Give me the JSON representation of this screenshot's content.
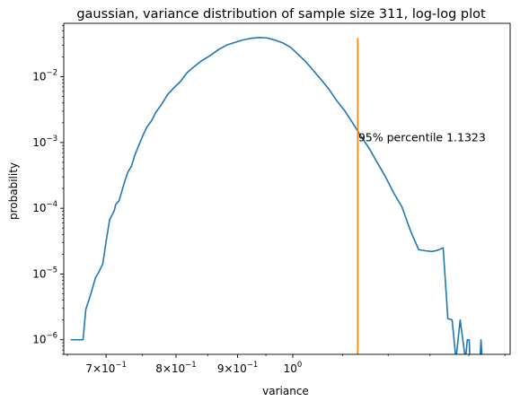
{
  "chart_data": {
    "type": "line",
    "title": "gaussian, variance distribution of sample size 311, log-log plot",
    "xlabel": "variance",
    "ylabel": "probability",
    "xscale": "log",
    "yscale": "log",
    "xlim": [
      0.6456,
      1.515
    ],
    "ylim": [
      6e-07,
      0.065
    ],
    "grid": false,
    "x_ticks": [
      {
        "value": 0.7,
        "base": "7",
        "exp": "−1"
      },
      {
        "value": 0.8,
        "base": "8",
        "exp": "−1"
      },
      {
        "value": 0.9,
        "base": "9",
        "exp": "−1"
      },
      {
        "value": 1.0,
        "base": "10",
        "exp": "0",
        "plain": true
      }
    ],
    "y_ticks": [
      {
        "value": 1e-06,
        "exp": "−6"
      },
      {
        "value": 1e-05,
        "exp": "−5"
      },
      {
        "value": 0.0001,
        "exp": "−4"
      },
      {
        "value": 0.001,
        "exp": "−3"
      },
      {
        "value": 0.01,
        "exp": "−2"
      }
    ],
    "series": [
      {
        "color": "#1f77b4",
        "x": [
          0.6542,
          0.6698,
          0.6734,
          0.679,
          0.686,
          0.6905,
          0.6956,
          0.7005,
          0.7048,
          0.708,
          0.711,
          0.713,
          0.7175,
          0.726,
          0.73,
          0.7345,
          0.739,
          0.745,
          0.752,
          0.757,
          0.763,
          0.77,
          0.779,
          0.7875,
          0.797,
          0.807,
          0.817,
          0.828,
          0.84,
          0.854,
          0.868,
          0.882,
          0.896,
          0.91,
          0.924,
          0.938,
          0.952,
          0.967,
          0.982,
          0.996,
          1.01,
          1.025,
          1.04,
          1.056,
          1.072,
          1.088,
          1.105,
          1.121,
          1.138,
          1.156,
          1.175,
          1.194,
          1.213,
          1.232,
          1.252,
          1.272,
          1.29,
          1.305,
          1.319,
          1.333,
          1.345,
          1.356,
          1.366,
          1.377,
          1.384,
          1.391,
          1.396,
          1.401,
          1.403,
          1.406,
          1.409,
          1.412,
          1.418,
          1.425,
          1.43,
          1.433,
          1.436
        ],
        "y": [
          1e-06,
          1e-06,
          2.9e-06,
          4.6e-06,
          8.8e-06,
          1.08e-05,
          1.43e-05,
          3.4e-05,
          6.7e-05,
          7.9e-05,
          9.2e-05,
          0.000114,
          0.00013,
          0.00027,
          0.00036,
          0.00043,
          0.00062,
          0.0009,
          0.00135,
          0.00174,
          0.0021,
          0.0029,
          0.0039,
          0.0054,
          0.0068,
          0.0085,
          0.0115,
          0.0142,
          0.0175,
          0.021,
          0.026,
          0.0305,
          0.0335,
          0.0365,
          0.0385,
          0.0395,
          0.039,
          0.036,
          0.0325,
          0.028,
          0.022,
          0.017,
          0.0125,
          0.009,
          0.0064,
          0.0043,
          0.003,
          0.002,
          0.00128,
          0.00084,
          0.0005,
          0.0003,
          0.00017,
          0.000105,
          4.6e-05,
          2.35e-05,
          2.25e-05,
          2.2e-05,
          2.3e-05,
          2.5e-05,
          2.1e-06,
          2e-06,
          5e-07,
          2e-06,
          1e-06,
          5e-07,
          1e-06,
          1e-06,
          5e-07,
          5e-07,
          5e-07,
          5e-07,
          5e-07,
          5e-07,
          5e-07,
          1e-06,
          5e-07
        ]
      },
      {
        "color": "#ff7f0e",
        "x": [
          1.1323,
          1.1323
        ],
        "y": [
          6e-07,
          0.039
        ]
      }
    ],
    "annotations": [
      {
        "text": "95% percentile 1.1323",
        "x": 1.1323,
        "y": 0.00101
      }
    ]
  }
}
